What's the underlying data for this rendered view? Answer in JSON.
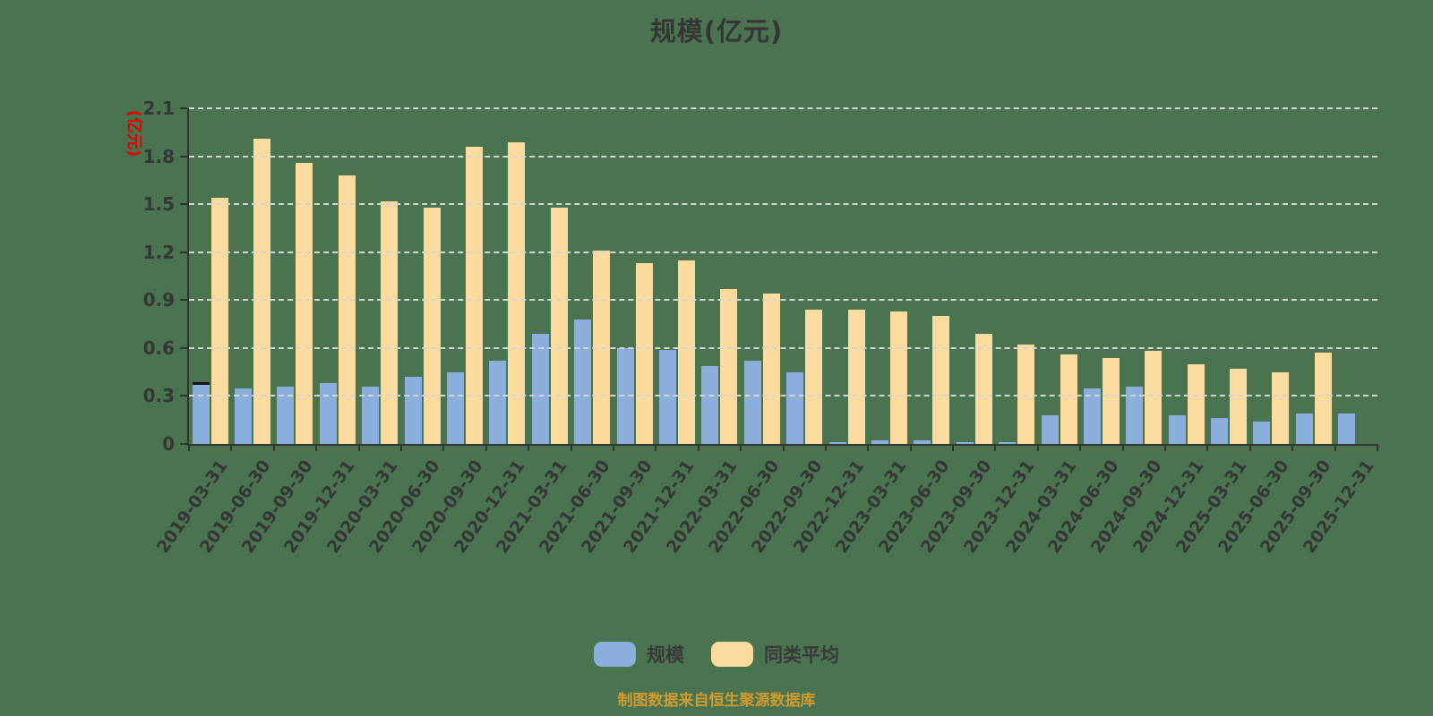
{
  "title": "规模(亿元)",
  "y_axis": {
    "unit_label": "(亿元)",
    "ticks": [
      "0",
      "0.3",
      "0.6",
      "0.9",
      "1.2",
      "1.5",
      "1.8",
      "2.1"
    ],
    "max": 2.1
  },
  "legend": [
    {
      "label": "规模",
      "color": "#8caedd"
    },
    {
      "label": "同类平均",
      "color": "#fcdc9e"
    }
  ],
  "footer": "制图数据来自恒生聚源数据库",
  "colors": {
    "background": "#4a7350",
    "series_scale": "#8caedd",
    "series_average": "#fcdc9e",
    "axis": "#333333",
    "gridline": "#d4d4d4",
    "text": "#363636",
    "y_unit_label": "#e60000",
    "footer_text": "#d09b2e",
    "first_bar_cap": "#151515"
  },
  "chart_data": {
    "type": "bar",
    "title": "规模(亿元)",
    "xlabel": "",
    "ylabel": "(亿元)",
    "ylim": [
      0,
      2.1
    ],
    "ytick_step": 0.3,
    "grid": "horizontal-dashed",
    "legend_position": "bottom",
    "categories": [
      "2019-03-31",
      "2019-06-30",
      "2019-09-30",
      "2019-12-31",
      "2020-03-31",
      "2020-06-30",
      "2020-09-30",
      "2020-12-31",
      "2021-03-31",
      "2021-06-30",
      "2021-09-30",
      "2021-12-31",
      "2022-03-31",
      "2022-06-30",
      "2022-09-30",
      "2022-12-31",
      "2023-03-31",
      "2023-06-30",
      "2023-09-30",
      "2023-12-31",
      "2024-03-31",
      "2024-06-30",
      "2024-09-30",
      "2024-12-31",
      "2025-03-31",
      "2025-06-30",
      "2025-09-30",
      "2025-12-31"
    ],
    "series": [
      {
        "name": "规模",
        "color": "#8caedd",
        "values": [
          0.37,
          0.35,
          0.36,
          0.38,
          0.36,
          0.42,
          0.45,
          0.52,
          0.69,
          0.78,
          0.6,
          0.59,
          0.49,
          0.52,
          0.45,
          0.01,
          0.02,
          0.02,
          0.01,
          0.01,
          0.18,
          0.35,
          0.36,
          0.18,
          0.16,
          0.14,
          0.19,
          0.19
        ]
      },
      {
        "name": "同类平均",
        "color": "#fcdc9e",
        "values": [
          1.54,
          1.91,
          1.76,
          1.68,
          1.52,
          1.48,
          1.86,
          1.89,
          1.48,
          1.21,
          1.13,
          1.15,
          0.97,
          0.94,
          0.84,
          0.84,
          0.83,
          0.8,
          0.69,
          0.62,
          0.56,
          0.54,
          0.58,
          0.5,
          0.47,
          0.45,
          0.57,
          null
        ]
      }
    ]
  }
}
